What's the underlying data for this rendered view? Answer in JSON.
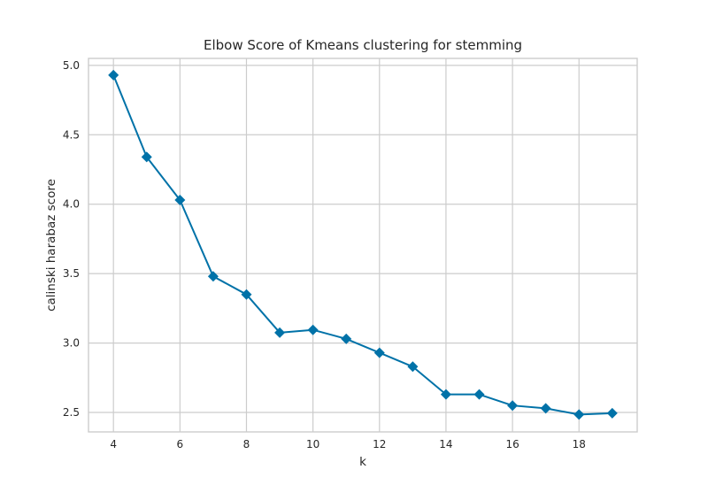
{
  "chart_data": {
    "type": "line",
    "title": "Elbow Score of Kmeans clustering for stemming",
    "xlabel": "k",
    "ylabel": "calinski harabaz score",
    "x": [
      4,
      5,
      6,
      7,
      8,
      9,
      10,
      11,
      12,
      13,
      14,
      15,
      16,
      17,
      18,
      19
    ],
    "series": [
      {
        "values": [
          4.93,
          4.34,
          4.03,
          3.48,
          3.35,
          3.075,
          3.095,
          3.03,
          2.93,
          2.83,
          2.63,
          2.63,
          2.55,
          2.53,
          2.485,
          2.495
        ],
        "color": "#0072a8",
        "marker": "diamond"
      }
    ],
    "xticks": [
      4,
      6,
      8,
      10,
      12,
      14,
      16,
      18
    ],
    "xtick_labels": [
      "4",
      "6",
      "8",
      "10",
      "12",
      "14",
      "16",
      "18"
    ],
    "yticks": [
      2.5,
      3.0,
      3.5,
      4.0,
      4.5,
      5.0
    ],
    "ytick_labels": [
      "2.5",
      "3.0",
      "3.5",
      "4.0",
      "4.5",
      "5.0"
    ],
    "xlim": [
      3.25,
      19.75
    ],
    "ylim": [
      2.36,
      5.05
    ],
    "grid": true,
    "legend": "none"
  }
}
